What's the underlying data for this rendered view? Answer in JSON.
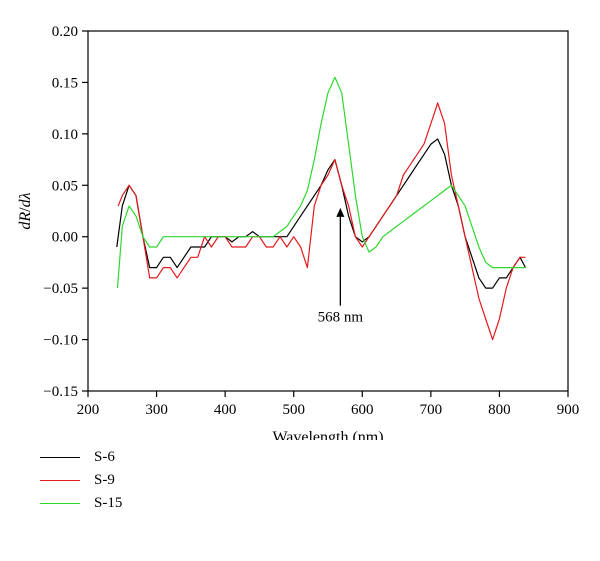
{
  "chart_data": {
    "type": "line",
    "xlabel": "Wavelength (nm)",
    "ylabel_parts": [
      "dR",
      "/",
      "d",
      "λ"
    ],
    "xlim": [
      200,
      900
    ],
    "ylim": [
      -0.15,
      0.2
    ],
    "xticks": [
      200,
      300,
      400,
      500,
      600,
      700,
      800,
      900
    ],
    "yticks": [
      -0.15,
      -0.1,
      -0.05,
      0.0,
      0.05,
      0.1,
      0.15,
      0.2
    ],
    "xtick_labels": [
      "200",
      "300",
      "400",
      "500",
      "600",
      "700",
      "800",
      "900"
    ],
    "ytick_labels": [
      "−0.15",
      "−0.10",
      "−0.05",
      "0.00",
      "0.05",
      "0.10",
      "0.15",
      "0.20"
    ],
    "grid": false,
    "legend_position": "below-left",
    "annotation": {
      "text": "568 nm",
      "x": 568,
      "y": 0.028,
      "arrow_from_y": -0.067
    },
    "series": [
      {
        "name": "S-6",
        "color": "#000000",
        "x": [
          242,
          250,
          260,
          270,
          280,
          290,
          300,
          310,
          320,
          330,
          340,
          350,
          360,
          370,
          380,
          390,
          400,
          410,
          420,
          430,
          440,
          450,
          460,
          470,
          480,
          490,
          500,
          510,
          520,
          530,
          540,
          550,
          560,
          570,
          580,
          590,
          600,
          610,
          620,
          630,
          640,
          650,
          660,
          670,
          680,
          690,
          700,
          710,
          720,
          730,
          740,
          750,
          760,
          770,
          780,
          790,
          800,
          810,
          820,
          830,
          838
        ],
        "y": [
          -0.01,
          0.03,
          0.05,
          0.04,
          0.0,
          -0.03,
          -0.03,
          -0.02,
          -0.02,
          -0.03,
          -0.02,
          -0.01,
          -0.01,
          -0.01,
          0.0,
          0.0,
          0.0,
          -0.005,
          0.0,
          0.0,
          0.005,
          0.0,
          0.0,
          0.0,
          0.0,
          0.0,
          0.01,
          0.02,
          0.03,
          0.04,
          0.05,
          0.065,
          0.075,
          0.05,
          0.02,
          0.0,
          -0.005,
          0.0,
          0.01,
          0.02,
          0.03,
          0.04,
          0.05,
          0.06,
          0.07,
          0.08,
          0.09,
          0.095,
          0.08,
          0.05,
          0.03,
          0.0,
          -0.02,
          -0.04,
          -0.05,
          -0.05,
          -0.04,
          -0.04,
          -0.03,
          -0.02,
          -0.03
        ]
      },
      {
        "name": "S-9",
        "color": "#e31a1c",
        "x": [
          244,
          250,
          260,
          270,
          280,
          290,
          300,
          310,
          320,
          330,
          340,
          350,
          360,
          370,
          380,
          390,
          400,
          410,
          420,
          430,
          440,
          450,
          460,
          470,
          480,
          490,
          500,
          510,
          520,
          530,
          540,
          550,
          560,
          570,
          580,
          590,
          600,
          610,
          620,
          630,
          640,
          650,
          660,
          670,
          680,
          690,
          700,
          710,
          720,
          730,
          740,
          750,
          760,
          770,
          780,
          790,
          800,
          810,
          820,
          830,
          838
        ],
        "y": [
          0.03,
          0.04,
          0.05,
          0.04,
          0.0,
          -0.04,
          -0.04,
          -0.03,
          -0.03,
          -0.04,
          -0.03,
          -0.02,
          -0.02,
          0.0,
          -0.01,
          0.0,
          0.0,
          -0.01,
          -0.01,
          -0.01,
          0.0,
          0.0,
          -0.01,
          -0.01,
          0.0,
          -0.01,
          0.0,
          -0.01,
          -0.03,
          0.03,
          0.05,
          0.06,
          0.075,
          0.05,
          0.03,
          0.0,
          -0.01,
          0.0,
          0.01,
          0.02,
          0.03,
          0.04,
          0.06,
          0.07,
          0.08,
          0.09,
          0.11,
          0.13,
          0.11,
          0.06,
          0.03,
          0.0,
          -0.03,
          -0.06,
          -0.08,
          -0.1,
          -0.08,
          -0.05,
          -0.03,
          -0.02,
          -0.02
        ]
      },
      {
        "name": "S-15",
        "color": "#2ed82e",
        "x": [
          243,
          250,
          260,
          270,
          280,
          290,
          300,
          310,
          320,
          330,
          340,
          350,
          360,
          370,
          380,
          390,
          400,
          410,
          420,
          430,
          440,
          450,
          460,
          470,
          480,
          490,
          500,
          510,
          520,
          530,
          540,
          550,
          560,
          570,
          580,
          590,
          600,
          610,
          620,
          630,
          640,
          650,
          660,
          670,
          680,
          690,
          700,
          710,
          720,
          730,
          740,
          750,
          760,
          770,
          780,
          790,
          800,
          810,
          820,
          830,
          838
        ],
        "y": [
          -0.05,
          0.01,
          0.03,
          0.02,
          0.0,
          -0.01,
          -0.01,
          0.0,
          0.0,
          0.0,
          0.0,
          0.0,
          0.0,
          0.0,
          0.0,
          0.0,
          0.0,
          0.0,
          0.0,
          0.0,
          0.0,
          0.0,
          0.0,
          0.0,
          0.005,
          0.01,
          0.02,
          0.03,
          0.045,
          0.075,
          0.11,
          0.14,
          0.155,
          0.14,
          0.09,
          0.04,
          0.0,
          -0.015,
          -0.01,
          0.0,
          0.005,
          0.01,
          0.015,
          0.02,
          0.025,
          0.03,
          0.035,
          0.04,
          0.045,
          0.05,
          0.04,
          0.03,
          0.01,
          -0.01,
          -0.025,
          -0.03,
          -0.03,
          -0.03,
          -0.03,
          -0.03,
          -0.03
        ]
      }
    ]
  }
}
